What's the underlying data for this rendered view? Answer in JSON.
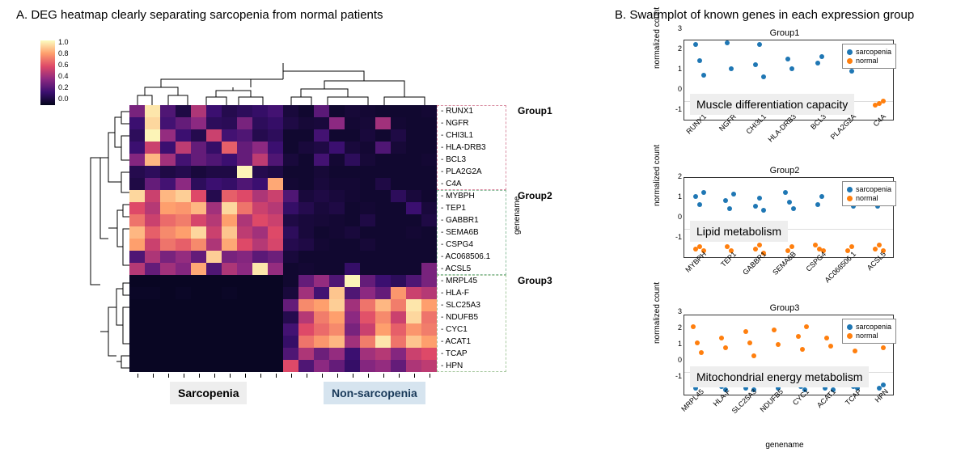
{
  "panelA": {
    "title": "A. DEG heatmap clearly separating sarcopenia from normal patients",
    "colorbar": {
      "ticks": [
        "1.0",
        "0.8",
        "0.6",
        "0.4",
        "0.2",
        "0.0"
      ],
      "gradient": [
        "#03051a",
        "#3b0f70",
        "#8c2981",
        "#de4968",
        "#fe9f6d",
        "#fcfdbf"
      ]
    },
    "heatmap": {
      "n_cols": 20,
      "n_rows": 22,
      "row_labels": [
        "RUNX1",
        "NGFR",
        "CHI3L1",
        "HLA-DRB3",
        "BCL3",
        "PLA2G2A",
        "C4A",
        "MYBPH",
        "TEP1",
        "GABBR1",
        "SEMA6B",
        "CSPG4",
        "AC068506.1",
        "ACSL5",
        "MRPL45",
        "HLA-F",
        "SLC25A3",
        "NDUFB5",
        "CYC1",
        "ACAT1",
        "TCAP",
        "HPN"
      ],
      "y_axis_label": "genename",
      "groups": [
        {
          "name": "Group1",
          "rows": [
            0,
            6
          ],
          "color": "#d98fa3"
        },
        {
          "name": "Group2",
          "rows": [
            7,
            13
          ],
          "color": "#8fbf9f"
        },
        {
          "name": "Group3",
          "rows": [
            14,
            21
          ],
          "color": "#a8c9a0"
        }
      ],
      "col_groups": {
        "sarcopenia": [
          0,
          10
        ],
        "nonsarcopenia": [
          11,
          19
        ]
      },
      "category_labels": {
        "sarcopenia": "Sarcopenia",
        "nonsarcopenia": "Non-sarcopenia"
      },
      "data": [
        [
          0.35,
          0.95,
          0.25,
          0.1,
          0.48,
          0.2,
          0.12,
          0.15,
          0.18,
          0.22,
          0.08,
          0.05,
          0.28,
          0.05,
          0.07,
          0.06,
          0.05,
          0.05,
          0.05,
          0.06
        ],
        [
          0.2,
          0.92,
          0.22,
          0.3,
          0.4,
          0.15,
          0.14,
          0.35,
          0.15,
          0.18,
          0.1,
          0.07,
          0.08,
          0.4,
          0.06,
          0.07,
          0.45,
          0.06,
          0.05,
          0.05
        ],
        [
          0.15,
          0.98,
          0.42,
          0.2,
          0.12,
          0.55,
          0.22,
          0.25,
          0.12,
          0.15,
          0.05,
          0.05,
          0.22,
          0.05,
          0.05,
          0.08,
          0.05,
          0.1,
          0.05,
          0.05
        ],
        [
          0.2,
          0.55,
          0.2,
          0.52,
          0.3,
          0.18,
          0.65,
          0.3,
          0.4,
          0.2,
          0.05,
          0.08,
          0.1,
          0.2,
          0.08,
          0.06,
          0.25,
          0.07,
          0.05,
          0.05
        ],
        [
          0.38,
          0.85,
          0.45,
          0.22,
          0.3,
          0.25,
          0.2,
          0.3,
          0.52,
          0.25,
          0.08,
          0.05,
          0.22,
          0.06,
          0.15,
          0.07,
          0.05,
          0.05,
          0.05,
          0.06
        ],
        [
          0.12,
          0.15,
          0.1,
          0.12,
          0.08,
          0.1,
          0.1,
          0.98,
          0.12,
          0.1,
          0.05,
          0.05,
          0.07,
          0.05,
          0.05,
          0.05,
          0.05,
          0.05,
          0.05,
          0.05
        ],
        [
          0.1,
          0.3,
          0.22,
          0.4,
          0.15,
          0.2,
          0.18,
          0.25,
          0.2,
          0.82,
          0.06,
          0.05,
          0.08,
          0.06,
          0.06,
          0.05,
          0.1,
          0.05,
          0.05,
          0.05
        ],
        [
          0.92,
          0.55,
          0.85,
          0.9,
          0.6,
          0.12,
          0.65,
          0.6,
          0.48,
          0.55,
          0.25,
          0.08,
          0.1,
          0.08,
          0.06,
          0.05,
          0.05,
          0.15,
          0.08,
          0.05
        ],
        [
          0.6,
          0.5,
          0.8,
          0.78,
          0.85,
          0.45,
          0.92,
          0.7,
          0.55,
          0.5,
          0.18,
          0.12,
          0.08,
          0.1,
          0.05,
          0.06,
          0.05,
          0.05,
          0.2,
          0.08
        ],
        [
          0.7,
          0.55,
          0.68,
          0.72,
          0.58,
          0.5,
          0.8,
          0.48,
          0.6,
          0.55,
          0.1,
          0.08,
          0.07,
          0.06,
          0.05,
          0.1,
          0.05,
          0.05,
          0.05,
          0.1
        ],
        [
          0.85,
          0.65,
          0.75,
          0.8,
          0.92,
          0.55,
          0.88,
          0.52,
          0.45,
          0.6,
          0.15,
          0.08,
          0.05,
          0.06,
          0.08,
          0.05,
          0.05,
          0.05,
          0.06,
          0.05
        ],
        [
          0.8,
          0.55,
          0.7,
          0.65,
          0.75,
          0.48,
          0.82,
          0.6,
          0.5,
          0.58,
          0.12,
          0.1,
          0.06,
          0.05,
          0.05,
          0.07,
          0.05,
          0.05,
          0.05,
          0.05
        ],
        [
          0.25,
          0.48,
          0.35,
          0.42,
          0.3,
          0.9,
          0.35,
          0.38,
          0.28,
          0.32,
          0.08,
          0.05,
          0.05,
          0.05,
          0.05,
          0.05,
          0.05,
          0.05,
          0.05,
          0.05
        ],
        [
          0.5,
          0.3,
          0.45,
          0.38,
          0.82,
          0.25,
          0.48,
          0.4,
          0.95,
          0.42,
          0.05,
          0.06,
          0.05,
          0.05,
          0.18,
          0.05,
          0.05,
          0.05,
          0.05,
          0.35
        ],
        [
          0.02,
          0.02,
          0.02,
          0.02,
          0.02,
          0.02,
          0.02,
          0.02,
          0.02,
          0.02,
          0.05,
          0.3,
          0.42,
          0.25,
          0.98,
          0.3,
          0.2,
          0.15,
          0.25,
          0.35
        ],
        [
          0.03,
          0.03,
          0.02,
          0.03,
          0.02,
          0.02,
          0.03,
          0.02,
          0.02,
          0.02,
          0.08,
          0.45,
          0.22,
          0.88,
          0.25,
          0.4,
          0.3,
          0.78,
          0.55,
          0.5
        ],
        [
          0.02,
          0.02,
          0.02,
          0.02,
          0.02,
          0.02,
          0.02,
          0.02,
          0.02,
          0.02,
          0.3,
          0.75,
          0.8,
          0.9,
          0.45,
          0.7,
          0.85,
          0.72,
          0.95,
          0.8
        ],
        [
          0.02,
          0.02,
          0.02,
          0.02,
          0.02,
          0.02,
          0.02,
          0.02,
          0.02,
          0.02,
          0.12,
          0.5,
          0.72,
          0.8,
          0.4,
          0.62,
          0.75,
          0.55,
          0.92,
          0.7
        ],
        [
          0.02,
          0.02,
          0.02,
          0.02,
          0.02,
          0.02,
          0.02,
          0.02,
          0.02,
          0.02,
          0.22,
          0.6,
          0.68,
          0.75,
          0.35,
          0.55,
          0.8,
          0.65,
          0.78,
          0.72
        ],
        [
          0.02,
          0.02,
          0.02,
          0.02,
          0.02,
          0.02,
          0.02,
          0.02,
          0.02,
          0.02,
          0.18,
          0.7,
          0.78,
          0.85,
          0.45,
          0.72,
          0.95,
          0.7,
          0.88,
          0.8
        ],
        [
          0.02,
          0.02,
          0.02,
          0.02,
          0.02,
          0.02,
          0.02,
          0.02,
          0.02,
          0.02,
          0.25,
          0.48,
          0.32,
          0.42,
          0.2,
          0.45,
          0.5,
          0.38,
          0.55,
          0.6
        ],
        [
          0.02,
          0.02,
          0.02,
          0.02,
          0.02,
          0.02,
          0.02,
          0.02,
          0.02,
          0.02,
          0.6,
          0.25,
          0.4,
          0.3,
          0.18,
          0.38,
          0.42,
          0.3,
          0.48,
          0.52
        ]
      ]
    }
  },
  "panelB": {
    "title": "B. Swarmplot of known genes in each expression group",
    "xlabel": "genename",
    "legend": {
      "sarcopenia": {
        "label": "sarcopenia",
        "color": "#1f77b4"
      },
      "normal": {
        "label": "normal",
        "color": "#ff7f0e"
      }
    },
    "plots": [
      {
        "title": "Group1",
        "overlay": "Muscle differentiation capacity",
        "overlay_bg": "#eeeeee",
        "ylabel": "normalized count",
        "genes": [
          "RUNX1",
          "NGFR",
          "CHI3L1",
          "HLA-DRB3",
          "BCL3",
          "PLA2G2A",
          "C4A"
        ],
        "ylim": [
          -1,
          3
        ],
        "yticks": [
          -1,
          0,
          1,
          2,
          3
        ],
        "sarcopenia": [
          [
            2.8,
            2.0,
            1.3
          ],
          [
            2.9,
            1.6
          ],
          [
            1.8,
            2.8,
            1.2
          ],
          [
            2.1,
            1.6
          ],
          [
            1.9,
            2.2
          ],
          [
            2.4,
            1.5
          ],
          [
            2.3,
            1.8
          ]
        ],
        "normal": [
          [
            -0.1,
            -0.2,
            0.0
          ],
          [
            -0.2,
            -0.3,
            0.1
          ],
          [
            -0.1,
            -0.3,
            -0.4
          ],
          [
            -0.2,
            0.0,
            -0.3
          ],
          [
            0.0,
            -0.2,
            -0.1
          ],
          [
            -0.1,
            -0.3
          ],
          [
            -0.2,
            -0.1,
            0.0
          ]
        ]
      },
      {
        "title": "Group2",
        "overlay": "Lipid metabolism",
        "overlay_bg": "#eeeeee",
        "ylabel": "normalized count",
        "genes": [
          "MYBPH",
          "TEP1",
          "GABBR1",
          "SEMA6B",
          "CSPG4",
          "AC068506.1",
          "ACSL5"
        ],
        "ylim": [
          -1.5,
          2.5
        ],
        "yticks": [
          -1,
          0,
          1,
          2
        ],
        "sarcopenia": [
          [
            1.6,
            1.2,
            1.8
          ],
          [
            1.4,
            1.0,
            1.7
          ],
          [
            1.1,
            1.5,
            0.9
          ],
          [
            1.8,
            1.3,
            1.0
          ],
          [
            1.2,
            1.6
          ],
          [
            2.0,
            1.5,
            1.1
          ],
          [
            1.1,
            1.5
          ]
        ],
        "normal": [
          [
            -1.0,
            -0.9,
            -1.1
          ],
          [
            -0.9,
            -1.1
          ],
          [
            -1.0,
            -0.8,
            -1.2
          ],
          [
            -1.1,
            -0.9
          ],
          [
            -0.8,
            -1.0,
            -1.1
          ],
          [
            -1.1,
            -0.9
          ],
          [
            -1.0,
            -0.8,
            -1.1
          ]
        ]
      },
      {
        "title": "Group3",
        "overlay": "Mitochondrial energy metabolism",
        "overlay_bg": "#eeeeee",
        "ylabel": "normalized count",
        "genes": [
          "MRPL45",
          "HLA-F",
          "SLC25A3",
          "NDUFB5",
          "CYC1",
          "ACAT1",
          "TCAP",
          "HPN"
        ],
        "ylim": [
          -1.5,
          3.5
        ],
        "yticks": [
          -1,
          0,
          1,
          2,
          3
        ],
        "sarcopenia": [
          [
            -1.0,
            -0.8
          ],
          [
            -0.9,
            -1.1
          ],
          [
            -1.0,
            -0.7,
            -1.1
          ],
          [
            -0.8,
            -1.0
          ],
          [
            -0.9,
            -1.1
          ],
          [
            -1.0,
            -0.8,
            -1.1
          ],
          [
            -0.9,
            -1.0
          ],
          [
            -1.0,
            -0.8
          ]
        ],
        "normal": [
          [
            2.8,
            1.8,
            1.2
          ],
          [
            2.1,
            1.5
          ],
          [
            2.5,
            1.8,
            1.0
          ],
          [
            2.6,
            1.7
          ],
          [
            2.2,
            1.4,
            2.8
          ],
          [
            2.1,
            1.6
          ],
          [
            2.4,
            1.3,
            2.0
          ],
          [
            2.3,
            1.5
          ]
        ]
      }
    ]
  },
  "colors": {
    "magma_stops": [
      "#03051a",
      "#3b0f70",
      "#8c2981",
      "#de4968",
      "#fe9f6d",
      "#fcfdbf"
    ]
  }
}
